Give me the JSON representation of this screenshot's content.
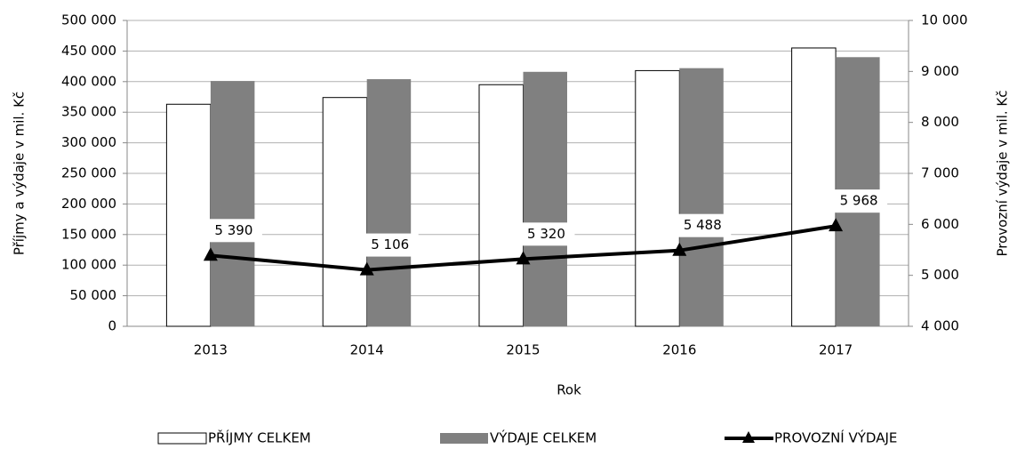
{
  "chart_data": {
    "type": "bar-line",
    "xlabel": "Rok",
    "ylabel": "Příjmy a výdaje v mil. Kč",
    "y2label": "Provozní výdaje v mil. Kč",
    "categories": [
      "2013",
      "2014",
      "2015",
      "2016",
      "2017"
    ],
    "series": [
      {
        "name": "PŘÍJMY CELKEM",
        "type": "bar",
        "color": "#ffffff",
        "values": [
          363000,
          374000,
          395000,
          418000,
          455000
        ]
      },
      {
        "name": "VÝDAJE CELKEM",
        "type": "bar",
        "color": "#808080",
        "values": [
          401000,
          404000,
          416000,
          422000,
          440000
        ]
      },
      {
        "name": "PROVOZNÍ VÝDAJE",
        "type": "line",
        "axis": "y2",
        "color": "#000000",
        "values": [
          5390,
          5106,
          5320,
          5488,
          5968
        ],
        "value_labels": [
          "5 390",
          "5 106",
          "5 320",
          "5 488",
          "5 968"
        ]
      }
    ],
    "ylim": [
      0,
      500000
    ],
    "yticks": [
      0,
      {
        "value": 50000,
        "label": "50 000"
      },
      {
        "value": 100000,
        "label": "100 000"
      },
      {
        "value": 150000,
        "label": "150 000"
      },
      {
        "value": 200000,
        "label": "200 000"
      },
      {
        "value": 250000,
        "label": "250 000"
      },
      {
        "value": 300000,
        "label": "300 000"
      },
      {
        "value": 350000,
        "label": "350 000"
      },
      {
        "value": 400000,
        "label": "400 000"
      },
      {
        "value": 450000,
        "label": "450 000"
      },
      {
        "value": 500000,
        "label": "500 000"
      }
    ],
    "y2lim": [
      4000,
      10000
    ],
    "y2ticks": [
      {
        "value": 4000,
        "label": "4 000"
      },
      {
        "value": 5000,
        "label": "5 000"
      },
      {
        "value": 6000,
        "label": "6 000"
      },
      {
        "value": 7000,
        "label": "7 000"
      },
      {
        "value": 8000,
        "label": "8 000"
      },
      {
        "value": 9000,
        "label": "9 000"
      },
      {
        "value": 10000,
        "label": "10 000"
      }
    ],
    "grid": true,
    "legend": "bottom"
  }
}
